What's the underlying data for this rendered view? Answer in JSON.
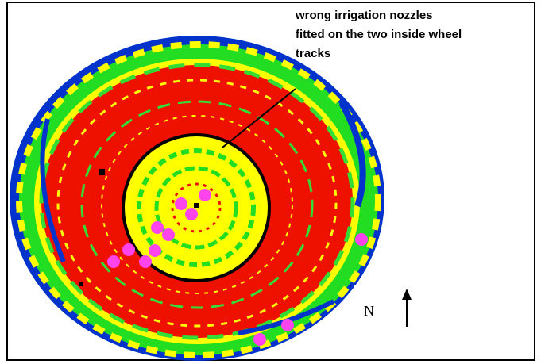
{
  "annotation": {
    "lines": [
      "wrong irrigation nozzles",
      "fitted on the two inside wheel",
      "tracks"
    ]
  },
  "compass": {
    "label": "N"
  }
}
